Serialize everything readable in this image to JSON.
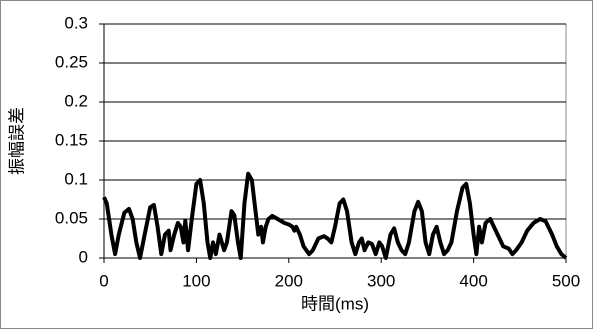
{
  "chart_data": {
    "type": "line",
    "xlabel": "時間(ms)",
    "ylabel": "振幅誤差",
    "x": [
      0,
      3,
      8,
      12,
      16,
      22,
      27,
      31,
      35,
      39,
      44,
      50,
      54,
      58,
      62,
      66,
      70,
      72,
      76,
      80,
      83,
      86,
      88,
      91,
      95,
      100,
      104,
      108,
      112,
      115,
      118,
      121,
      125,
      130,
      133,
      138,
      141,
      145,
      148,
      152,
      156,
      160,
      164,
      167,
      170,
      172,
      175,
      178,
      182,
      188,
      195,
      200,
      204,
      206,
      208,
      212,
      216,
      222,
      226,
      232,
      238,
      242,
      246,
      250,
      255,
      259,
      263,
      268,
      272,
      276,
      279,
      282,
      286,
      290,
      294,
      298,
      301,
      305,
      310,
      314,
      318,
      322,
      326,
      330,
      336,
      340,
      344,
      348,
      352,
      356,
      360,
      364,
      368,
      372,
      376,
      382,
      388,
      392,
      396,
      400,
      403,
      406,
      409,
      413,
      418,
      422,
      428,
      432,
      438,
      442,
      446,
      452,
      458,
      465,
      472,
      478,
      485,
      490,
      495,
      500
    ],
    "series": [
      {
        "color": "#000000",
        "values": [
          0.078,
          0.07,
          0.03,
          0.005,
          0.03,
          0.058,
          0.063,
          0.05,
          0.02,
          0.0,
          0.03,
          0.065,
          0.068,
          0.04,
          0.005,
          0.03,
          0.035,
          0.01,
          0.03,
          0.045,
          0.04,
          0.02,
          0.048,
          0.01,
          0.05,
          0.095,
          0.1,
          0.07,
          0.02,
          0.0,
          0.02,
          0.005,
          0.03,
          0.01,
          0.02,
          0.06,
          0.055,
          0.02,
          0.0,
          0.07,
          0.108,
          0.1,
          0.06,
          0.03,
          0.04,
          0.02,
          0.04,
          0.05,
          0.054,
          0.05,
          0.045,
          0.043,
          0.04,
          0.035,
          0.04,
          0.03,
          0.015,
          0.005,
          0.01,
          0.025,
          0.028,
          0.025,
          0.02,
          0.04,
          0.07,
          0.075,
          0.06,
          0.02,
          0.005,
          0.02,
          0.025,
          0.01,
          0.02,
          0.018,
          0.005,
          0.02,
          0.015,
          0.0,
          0.03,
          0.038,
          0.02,
          0.01,
          0.005,
          0.02,
          0.06,
          0.072,
          0.06,
          0.02,
          0.005,
          0.03,
          0.04,
          0.02,
          0.005,
          0.01,
          0.02,
          0.06,
          0.09,
          0.095,
          0.07,
          0.03,
          0.005,
          0.04,
          0.02,
          0.045,
          0.05,
          0.04,
          0.025,
          0.015,
          0.012,
          0.005,
          0.01,
          0.02,
          0.035,
          0.045,
          0.05,
          0.047,
          0.03,
          0.015,
          0.005,
          0.0
        ]
      }
    ],
    "xlim": [
      0,
      500
    ],
    "xticks": [
      0,
      100,
      200,
      300,
      400,
      500
    ],
    "ylim": [
      0,
      0.3
    ],
    "yticks": [
      0,
      0.05,
      0.1,
      0.15,
      0.2,
      0.25,
      0.3
    ],
    "grid": true
  }
}
